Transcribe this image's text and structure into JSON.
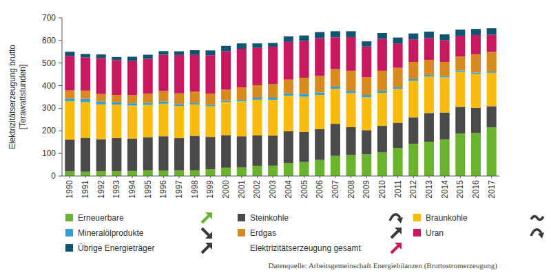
{
  "chart_data": {
    "type": "bar",
    "stacked": true,
    "grid": false,
    "y_label": "Elektrizitätserzeugung brutto [Terawattstunden]",
    "annotations": [
      "Elektrizitätserzeugung gesamt",
      "Datenquelle: Arbeitsgemeinschaft Energiebilanzen (Bruttostromerzeugung)"
    ],
    "categories": [
      "1990",
      "1991",
      "1992",
      "1993",
      "1994",
      "1995",
      "1996",
      "1997",
      "1998",
      "1999",
      "2000",
      "2001",
      "2002",
      "2003",
      "2004",
      "2005",
      "2006",
      "2007",
      "2008",
      "2009",
      "2010",
      "2011",
      "2012",
      "2013",
      "2014",
      "2015",
      "2016",
      "2017"
    ],
    "ylim": [
      0,
      700
    ],
    "yticks": [
      0,
      100,
      200,
      300,
      400,
      500,
      600,
      700
    ],
    "series": [
      {
        "name": "Erneuerbare",
        "color": "#6ab42d",
        "values": [
          20,
          19,
          21,
          21,
          22,
          25,
          24,
          25,
          25,
          30,
          37,
          38,
          45,
          46,
          57,
          62,
          71,
          89,
          93,
          96,
          105,
          124,
          143,
          152,
          162,
          188,
          190,
          216
        ]
      },
      {
        "name": "Steinkohle",
        "color": "#4a4a4a",
        "values": [
          141,
          150,
          142,
          147,
          144,
          147,
          152,
          143,
          153,
          143,
          143,
          138,
          135,
          133,
          141,
          134,
          137,
          142,
          124,
          107,
          117,
          112,
          117,
          127,
          119,
          118,
          112,
          93
        ]
      },
      {
        "name": "Braunkohle",
        "color": "#f8bb0e",
        "values": [
          171,
          158,
          154,
          148,
          146,
          143,
          144,
          142,
          139,
          136,
          148,
          155,
          158,
          158,
          158,
          155,
          151,
          155,
          150,
          146,
          146,
          150,
          161,
          161,
          156,
          155,
          150,
          148
        ]
      },
      {
        "name": "Mineralölprodukte",
        "color": "#2e9fd9",
        "values": [
          11,
          15,
          13,
          10,
          10,
          9,
          10,
          8,
          6,
          5,
          5,
          6,
          9,
          10,
          10,
          12,
          11,
          10,
          10,
          10,
          9,
          7,
          8,
          7,
          6,
          6,
          6,
          6
        ]
      },
      {
        "name": "Erdgas",
        "color": "#d98a1c",
        "values": [
          36,
          36,
          33,
          33,
          36,
          41,
          46,
          48,
          51,
          51,
          49,
          55,
          55,
          60,
          61,
          72,
          73,
          77,
          89,
          79,
          89,
          86,
          76,
          67,
          62,
          62,
          81,
          86
        ]
      },
      {
        "name": "Uran",
        "color": "#c8185f",
        "values": [
          153,
          147,
          159,
          154,
          151,
          154,
          161,
          170,
          162,
          170,
          170,
          171,
          165,
          165,
          167,
          163,
          167,
          141,
          149,
          135,
          141,
          108,
          100,
          97,
          97,
          92,
          85,
          76
        ]
      },
      {
        "name": "Übrige Energieträger",
        "color": "#0f5571",
        "values": [
          18,
          15,
          16,
          14,
          19,
          18,
          16,
          16,
          21,
          21,
          24,
          24,
          20,
          17,
          24,
          24,
          27,
          27,
          26,
          23,
          26,
          26,
          26,
          28,
          25,
          27,
          27,
          29
        ]
      }
    ]
  }
}
